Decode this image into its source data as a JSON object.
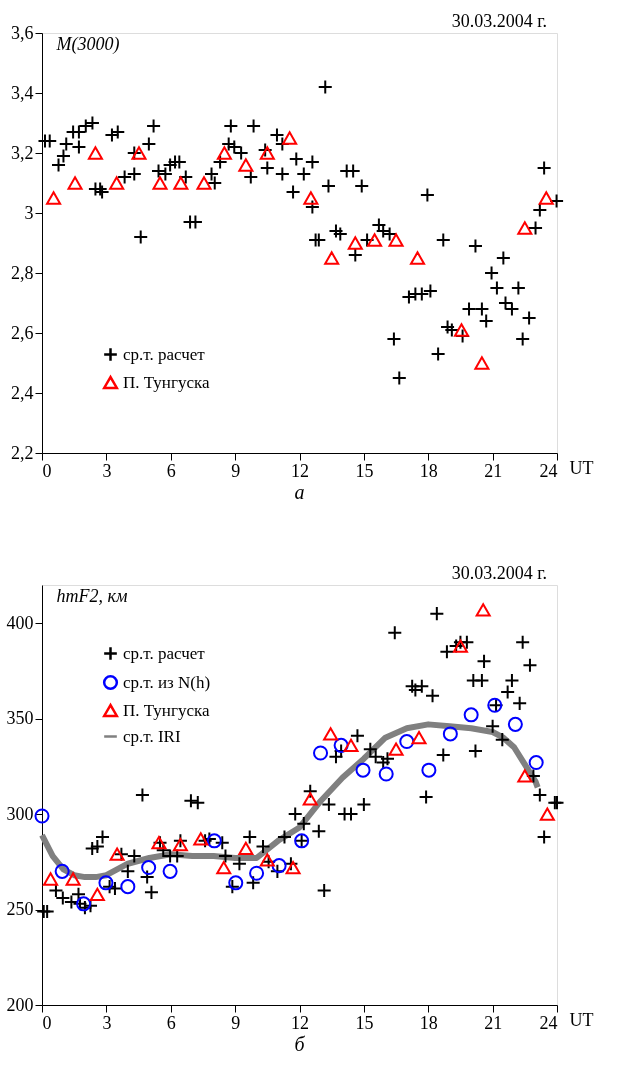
{
  "chart_data": [
    {
      "type": "scatter",
      "ylabel": "M(3000)",
      "xlabel": "UT",
      "annotations": [
        "30.03.2004 г.",
        "а"
      ],
      "xlim": [
        0,
        24
      ],
      "xticks": [
        0,
        3,
        6,
        9,
        12,
        15,
        18,
        21,
        24
      ],
      "ylim": [
        2.2,
        3.6
      ],
      "yticks": [
        {
          "value": 2.2,
          "label": "2,2"
        },
        {
          "value": 2.4,
          "label": "2,4"
        },
        {
          "value": 2.6,
          "label": "2,6"
        },
        {
          "value": 2.8,
          "label": "2,8"
        },
        3,
        {
          "value": 3.2,
          "label": "3,2"
        },
        {
          "value": 3.4,
          "label": "3,4"
        },
        {
          "value": 3.6,
          "label": "3,6"
        }
      ],
      "grid": false,
      "legend": "bottom left",
      "series": [
        {
          "name": "ср.т. расчет",
          "type": "scatter",
          "marker": "cross",
          "color": "#000000",
          "x": [
            0.14,
            0.36,
            0.77,
            1.0,
            1.13,
            1.45,
            1.72,
            1.72,
            2.04,
            2.35,
            2.49,
            2.71,
            2.8,
            3.26,
            3.53,
            3.85,
            4.3,
            4.6,
            4.3,
            4.98,
            5.2,
            5.43,
            5.75,
            5.97,
            6.2,
            6.4,
            6.7,
            6.9,
            7.15,
            7.9,
            8.05,
            8.3,
            8.7,
            8.8,
            8.96,
            9.28,
            9.73,
            9.86,
            10.4,
            10.5,
            10.95,
            11.2,
            11.2,
            11.85,
            11.7,
            12.2,
            12.6,
            12.6,
            12.75,
            13.2,
            13.35,
            14.2,
            14.5,
            14.9,
            12.9,
            13.7,
            13.9,
            14.6,
            15.15,
            15.7,
            15.9,
            16.2,
            16.4,
            16.65,
            17.1,
            17.4,
            17.7,
            18.1,
            17.96,
            18.46,
            18.7,
            18.9,
            19.1,
            19.6,
            19.9,
            20.5,
            20.2,
            20.7,
            20.95,
            21.5,
            21.2,
            21.6,
            21.9,
            22.2,
            22.7,
            22.4,
            23.0,
            23.2,
            23.4,
            23.98
          ],
          "values": [
            3.24,
            3.24,
            3.16,
            3.19,
            3.23,
            3.27,
            3.27,
            3.22,
            3.29,
            3.3,
            3.08,
            3.08,
            3.07,
            3.26,
            3.27,
            3.12,
            3.13,
            2.92,
            3.2,
            3.23,
            3.29,
            3.14,
            3.13,
            3.16,
            3.17,
            3.17,
            3.12,
            2.97,
            2.97,
            3.13,
            3.1,
            3.17,
            3.23,
            3.29,
            3.22,
            3.2,
            3.12,
            3.29,
            3.21,
            3.15,
            3.26,
            3.23,
            3.13,
            3.18,
            3.07,
            3.13,
            3.17,
            3.02,
            2.91,
            3.42,
            3.09,
            3.14,
            3.14,
            3.09,
            2.91,
            2.94,
            2.93,
            2.86,
            2.91,
            2.96,
            2.94,
            2.93,
            2.58,
            2.45,
            2.72,
            2.73,
            2.73,
            2.74,
            3.06,
            2.53,
            2.91,
            2.62,
            2.61,
            2.59,
            2.68,
            2.68,
            2.89,
            2.64,
            2.8,
            2.85,
            2.75,
            2.7,
            2.68,
            2.75,
            2.65,
            2.58,
            2.95,
            3.01,
            3.15,
            3.04
          ]
        },
        {
          "name": "П. Тунгуска",
          "type": "scatter",
          "marker": "triangle",
          "color": "#ff0000",
          "x": [
            0.54,
            1.54,
            2.49,
            3.48,
            4.52,
            5.5,
            6.47,
            7.55,
            8.5,
            9.5,
            10.5,
            11.54,
            12.53,
            13.5,
            14.6,
            15.5,
            16.5,
            17.5,
            19.55,
            20.5,
            22.5,
            23.5
          ],
          "values": [
            3.05,
            3.1,
            3.2,
            3.1,
            3.2,
            3.1,
            3.1,
            3.1,
            3.2,
            3.16,
            3.2,
            3.25,
            3.05,
            2.85,
            2.9,
            2.91,
            2.91,
            2.85,
            2.61,
            2.5,
            2.95,
            3.05
          ]
        }
      ]
    },
    {
      "type": "scatter",
      "ylabel": "hmF2, км",
      "xlabel": "UT",
      "annotations": [
        "30.03.2004 г.",
        "б"
      ],
      "xlim": [
        0,
        24
      ],
      "xticks": [
        0,
        3,
        6,
        9,
        12,
        15,
        18,
        21,
        24
      ],
      "ylim": [
        200,
        420
      ],
      "yticks": [
        200,
        250,
        300,
        350,
        400
      ],
      "grid": false,
      "legend": "top left",
      "series": [
        {
          "name": "ср.т. расчет",
          "type": "scatter",
          "marker": "cross",
          "color": "#000000",
          "x": [
            0.08,
            0.24,
            0.65,
            0.97,
            1.37,
            1.7,
            1.77,
            2.0,
            2.26,
            2.34,
            2.58,
            2.82,
            3.15,
            3.4,
            3.7,
            4.0,
            4.3,
            4.68,
            4.9,
            5.1,
            5.5,
            5.65,
            5.97,
            6.3,
            6.45,
            6.94,
            7.26,
            7.6,
            7.8,
            8.4,
            8.55,
            8.87,
            9.2,
            9.68,
            9.84,
            10.3,
            10.56,
            10.97,
            11.3,
            11.6,
            11.8,
            12.1,
            12.2,
            12.5,
            12.9,
            13.15,
            13.37,
            13.7,
            13.94,
            14.1,
            14.4,
            15.0,
            14.7,
            15.3,
            15.55,
            15.9,
            16.1,
            16.44,
            17.25,
            17.4,
            17.7,
            18.2,
            17.9,
            18.4,
            18.7,
            18.87,
            19.3,
            19.5,
            19.8,
            20.1,
            20.5,
            20.6,
            20.2,
            21.0,
            21.16,
            21.45,
            21.7,
            21.9,
            22.26,
            22.4,
            22.74,
            22.9,
            23.2,
            23.4,
            23.9,
            24.0
          ],
          "values": [
            249,
            249,
            260,
            256,
            254,
            258,
            253,
            251,
            252,
            282,
            283,
            288,
            262,
            261,
            279,
            270,
            278,
            310,
            267,
            259,
            285,
            281,
            278,
            278,
            286,
            307,
            306,
            286,
            287,
            285,
            278,
            262,
            274,
            288,
            264,
            283,
            275,
            270,
            288,
            274,
            300,
            286,
            295,
            312,
            291,
            260,
            305,
            330,
            333,
            300,
            300,
            305,
            341,
            334,
            330,
            327,
            329,
            395,
            367,
            365,
            367,
            362,
            309,
            405,
            331,
            385,
            388,
            390,
            390,
            370,
            370,
            380,
            333,
            346,
            357,
            339,
            364,
            370,
            358,
            390,
            378,
            320,
            310,
            288,
            306,
            306
          ]
        },
        {
          "name": "ср.т. из N(h)",
          "type": "scatter",
          "marker": "circle",
          "color": "#0000ff",
          "x": [
            0,
            0.94,
            1.94,
            2.98,
            4.0,
            4.97,
            5.97,
            8.03,
            9.03,
            10.0,
            11.05,
            12.1,
            12.98,
            13.94,
            14.96,
            16.04,
            17.0,
            18.03,
            19.03,
            20.0,
            21.1,
            22.06,
            23.03
          ],
          "values": [
            299,
            270,
            253,
            264,
            262,
            272,
            270,
            286,
            264,
            269,
            273,
            286,
            332,
            336,
            323,
            321,
            338,
            323,
            342,
            352,
            357,
            347,
            327
          ]
        },
        {
          "name": "П. Тунгуска",
          "type": "scatter",
          "marker": "triangle",
          "color": "#ff0000",
          "x": [
            0.4,
            1.45,
            2.58,
            3.5,
            5.45,
            6.45,
            7.4,
            8.47,
            9.5,
            10.5,
            11.7,
            12.5,
            13.45,
            14.4,
            16.5,
            17.57,
            19.5,
            20.56,
            22.5,
            23.55
          ],
          "values": [
            266,
            266,
            258,
            279,
            285,
            284,
            287,
            272,
            282,
            276,
            272,
            308,
            342,
            336,
            334,
            340,
            388,
            407,
            320,
            300
          ]
        },
        {
          "name": "ср.т. IRI",
          "type": "line",
          "marker": "none",
          "color": "#808080",
          "x": [
            0,
            0.5,
            1,
            1.5,
            2,
            2.5,
            3,
            4,
            5,
            6,
            7,
            8,
            9,
            10,
            11,
            12,
            13,
            14,
            15,
            16,
            17,
            18,
            19,
            20,
            21,
            21.5,
            22,
            22.5,
            23,
            23.1
          ],
          "values": [
            289,
            278,
            271,
            268,
            267,
            267,
            268,
            274,
            277,
            279,
            278,
            278,
            277,
            277,
            286,
            293,
            307,
            319,
            329,
            340,
            345,
            347,
            346,
            345,
            343,
            340,
            335,
            326,
            317,
            314
          ]
        }
      ]
    }
  ]
}
